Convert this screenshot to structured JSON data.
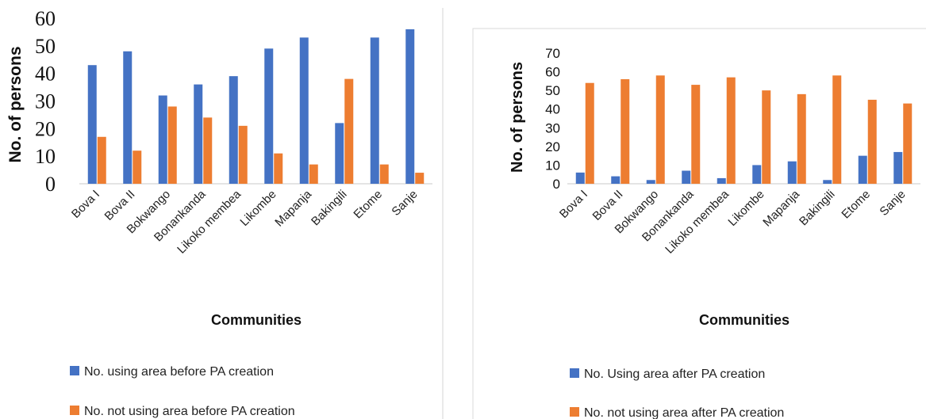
{
  "colors": {
    "before_use": "#4472C4",
    "not_use": "#ED7D31",
    "axis": "#c8c8c8",
    "divider": "#d4d4d4",
    "frame": "#d9d9d9"
  },
  "chart_data": [
    {
      "type": "bar",
      "categories": [
        "Bova I",
        "Bova II",
        "Bokwango",
        "Bonankanda",
        "Likoko membea",
        "Likombe",
        "Mapanja",
        "Bakingili",
        "Etome",
        "Sanje"
      ],
      "series": [
        {
          "name": "No. using area before PA creation",
          "values": [
            43,
            48,
            32,
            36,
            39,
            49,
            53,
            22,
            53,
            56
          ]
        },
        {
          "name": "No. not using area before PA creation",
          "values": [
            17,
            12,
            28,
            24,
            21,
            11,
            7,
            38,
            7,
            4
          ]
        }
      ],
      "title": "",
      "xlabel": "Communities",
      "ylabel": "No. of persons",
      "ylim": [
        0,
        60
      ],
      "yticks": [
        0,
        10,
        20,
        30,
        40,
        50,
        60
      ],
      "grid": false,
      "legend": "bottom"
    },
    {
      "type": "bar",
      "categories": [
        "Bova I",
        "Bova II",
        "Bokwango",
        "Bonankanda",
        "Likoko membea",
        "Likombe",
        "Mapanja",
        "Bakingili",
        "Etome",
        "Sanje"
      ],
      "series": [
        {
          "name": "No. Using area after PA creation",
          "values": [
            6,
            4,
            2,
            7,
            3,
            10,
            12,
            2,
            15,
            17
          ]
        },
        {
          "name": "No. not using area after PA creation",
          "values": [
            54,
            56,
            58,
            53,
            57,
            50,
            48,
            58,
            45,
            43
          ]
        }
      ],
      "title": "",
      "xlabel": "Communities",
      "ylabel": "No. of persons",
      "ylim": [
        0,
        70
      ],
      "yticks": [
        0,
        10,
        20,
        30,
        40,
        50,
        60,
        70
      ],
      "grid": false,
      "legend": "bottom"
    }
  ]
}
